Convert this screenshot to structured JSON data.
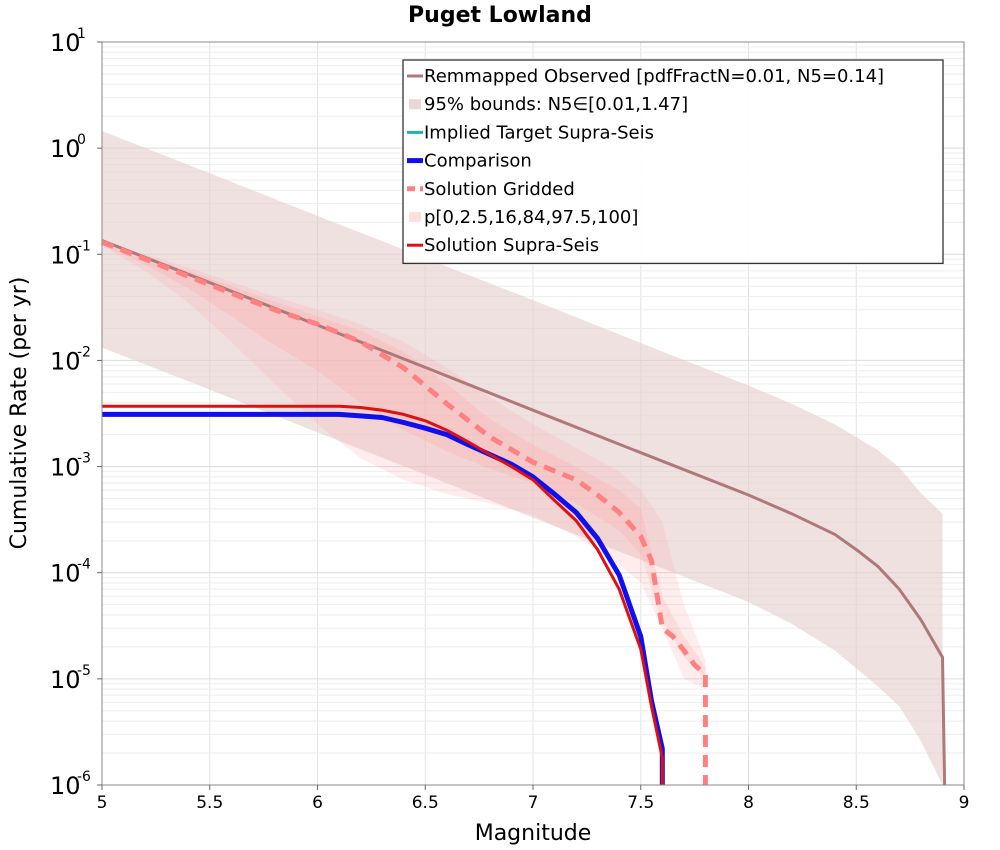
{
  "chart_data": {
    "type": "line",
    "title": "Puget Lowland",
    "xlabel": "Magnitude",
    "ylabel": "Cumulative Rate (per yr)",
    "xlim": [
      5,
      9
    ],
    "ylim": [
      1e-06,
      10
    ],
    "yscale": "log",
    "grid": true,
    "legend_position": "top-right",
    "xticks": [
      "5",
      "5.5",
      "6",
      "6.5",
      "7",
      "7.5",
      "8",
      "8.5",
      "9"
    ],
    "yticks": [
      {
        "base": "10",
        "exp": "-6",
        "value": 1e-06
      },
      {
        "base": "10",
        "exp": "-5",
        "value": 1e-05
      },
      {
        "base": "10",
        "exp": "-4",
        "value": 0.0001
      },
      {
        "base": "10",
        "exp": "-3",
        "value": 0.001
      },
      {
        "base": "10",
        "exp": "-2",
        "value": 0.01
      },
      {
        "base": "10",
        "exp": "-1",
        "value": 0.1
      },
      {
        "base": "10",
        "exp": "0",
        "value": 1
      },
      {
        "base": "10",
        "exp": "1",
        "value": 10
      }
    ],
    "series": [
      {
        "name": "Remmapped Observed [pdfFractN=0.01, N5=0.14]",
        "style": "line",
        "color": "#b07878",
        "width": 3,
        "points": [
          [
            5.0,
            0.135
          ],
          [
            5.5,
            0.054
          ],
          [
            6.0,
            0.0215
          ],
          [
            6.5,
            0.0086
          ],
          [
            7.0,
            0.0034
          ],
          [
            7.5,
            0.00135
          ],
          [
            8.0,
            0.00054
          ],
          [
            8.2,
            0.00036
          ],
          [
            8.4,
            0.00023
          ],
          [
            8.5,
            0.000165
          ],
          [
            8.6,
            0.000115
          ],
          [
            8.7,
            7e-05
          ],
          [
            8.8,
            3.6e-05
          ],
          [
            8.9,
            1.6e-05
          ],
          [
            8.91,
            1e-06
          ]
        ]
      },
      {
        "name": "95% bounds: N5∈[0.01,1.47]",
        "style": "band",
        "color": "#e6cdcd",
        "opacity": 0.6,
        "upper": [
          [
            5.0,
            1.45
          ],
          [
            5.5,
            0.58
          ],
          [
            6.0,
            0.23
          ],
          [
            6.5,
            0.092
          ],
          [
            7.0,
            0.037
          ],
          [
            7.5,
            0.0146
          ],
          [
            8.0,
            0.0058
          ],
          [
            8.2,
            0.0039
          ],
          [
            8.4,
            0.0025
          ],
          [
            8.6,
            0.00143
          ],
          [
            8.7,
            0.00098
          ],
          [
            8.8,
            0.00056
          ],
          [
            8.9,
            0.00036
          ],
          [
            8.9,
            0.00036
          ]
        ],
        "lower": [
          [
            5.0,
            0.0132
          ],
          [
            5.5,
            0.0053
          ],
          [
            6.0,
            0.0021
          ],
          [
            6.5,
            0.00084
          ],
          [
            7.0,
            0.00033
          ],
          [
            7.5,
            0.000132
          ],
          [
            8.0,
            5.3e-05
          ],
          [
            8.2,
            3.3e-05
          ],
          [
            8.4,
            1.85e-05
          ],
          [
            8.6,
            8.5e-06
          ],
          [
            8.7,
            5.5e-06
          ],
          [
            8.8,
            2.6e-06
          ],
          [
            8.9,
            1e-06
          ]
        ]
      },
      {
        "name": "Implied Target Supra-Seis",
        "style": "line",
        "color": "#20b2aa",
        "width": 3,
        "points": [
          [
            5.0,
            0.0031
          ],
          [
            6.0,
            0.0031
          ],
          [
            6.1,
            0.0031
          ],
          [
            6.2,
            0.003
          ],
          [
            6.3,
            0.0029
          ],
          [
            6.4,
            0.0026
          ],
          [
            6.5,
            0.0023
          ],
          [
            6.6,
            0.002
          ],
          [
            6.7,
            0.0016
          ],
          [
            6.8,
            0.0013
          ],
          [
            6.9,
            0.00105
          ],
          [
            7.0,
            0.0008
          ],
          [
            7.1,
            0.00055
          ],
          [
            7.2,
            0.00037
          ],
          [
            7.3,
            0.00021
          ],
          [
            7.4,
            9.5e-05
          ],
          [
            7.5,
            2.5e-05
          ],
          [
            7.55,
            6.2e-06
          ],
          [
            7.6,
            2.2e-06
          ],
          [
            7.6,
            1e-06
          ]
        ]
      },
      {
        "name": "Comparison",
        "style": "line",
        "color": "#1010ee",
        "width": 5,
        "points": [
          [
            5.0,
            0.0031
          ],
          [
            6.0,
            0.0031
          ],
          [
            6.1,
            0.0031
          ],
          [
            6.2,
            0.003
          ],
          [
            6.3,
            0.0029
          ],
          [
            6.4,
            0.0026
          ],
          [
            6.5,
            0.0023
          ],
          [
            6.6,
            0.002
          ],
          [
            6.7,
            0.0016
          ],
          [
            6.8,
            0.0013
          ],
          [
            6.9,
            0.00105
          ],
          [
            7.0,
            0.0008
          ],
          [
            7.1,
            0.00055
          ],
          [
            7.2,
            0.00037
          ],
          [
            7.3,
            0.00021
          ],
          [
            7.4,
            9.5e-05
          ],
          [
            7.5,
            2.5e-05
          ],
          [
            7.55,
            6.2e-06
          ],
          [
            7.6,
            2.2e-06
          ],
          [
            7.6,
            1e-06
          ]
        ]
      },
      {
        "name": "Solution Gridded",
        "style": "dashed",
        "color": "#ff8080",
        "width": 5,
        "points": [
          [
            5.0,
            0.13
          ],
          [
            5.2,
            0.09
          ],
          [
            5.4,
            0.062
          ],
          [
            5.6,
            0.043
          ],
          [
            5.8,
            0.03
          ],
          [
            6.0,
            0.022
          ],
          [
            6.2,
            0.015
          ],
          [
            6.4,
            0.0085
          ],
          [
            6.6,
            0.0039
          ],
          [
            6.8,
            0.0019
          ],
          [
            7.0,
            0.0011
          ],
          [
            7.2,
            0.00075
          ],
          [
            7.3,
            0.00054
          ],
          [
            7.4,
            0.00037
          ],
          [
            7.5,
            0.00022
          ],
          [
            7.55,
            0.00013
          ],
          [
            7.6,
            3e-05
          ],
          [
            7.65,
            2.5e-05
          ],
          [
            7.7,
            1.85e-05
          ],
          [
            7.75,
            1.35e-05
          ],
          [
            7.8,
            1.1e-05
          ],
          [
            7.8,
            1e-06
          ]
        ]
      },
      {
        "name": "p[0,2.5,16,84,97.5,100]",
        "style": "percentile-bands",
        "color": "#ff9999",
        "outer": {
          "upper": [
            [
              5.0,
              0.13
            ],
            [
              5.2,
              0.1
            ],
            [
              5.4,
              0.075
            ],
            [
              5.6,
              0.055
            ],
            [
              5.8,
              0.04
            ],
            [
              6.0,
              0.03
            ],
            [
              6.2,
              0.022
            ],
            [
              6.4,
              0.015
            ],
            [
              6.6,
              0.0085
            ],
            [
              6.8,
              0.0045
            ],
            [
              7.0,
              0.0025
            ],
            [
              7.2,
              0.0015
            ],
            [
              7.4,
              0.0009
            ],
            [
              7.5,
              0.0006
            ],
            [
              7.6,
              0.0003
            ],
            [
              7.7,
              5e-05
            ],
            [
              7.8,
              1.5e-05
            ]
          ],
          "lower": [
            [
              5.0,
              0.12
            ],
            [
              5.2,
              0.07
            ],
            [
              5.4,
              0.035
            ],
            [
              5.6,
              0.015
            ],
            [
              5.8,
              0.006
            ],
            [
              6.0,
              0.0025
            ],
            [
              6.2,
              0.0012
            ],
            [
              6.4,
              0.00075
            ],
            [
              6.6,
              0.00055
            ],
            [
              6.8,
              0.00045
            ],
            [
              7.0,
              0.00035
            ],
            [
              7.2,
              0.00022
            ],
            [
              7.4,
              0.00012
            ],
            [
              7.5,
              8e-05
            ],
            [
              7.6,
              3e-05
            ],
            [
              7.7,
              1e-05
            ],
            [
              7.8,
              8e-06
            ]
          ]
        },
        "inner": {
          "upper": [
            [
              5.0,
              0.128
            ],
            [
              5.2,
              0.095
            ],
            [
              5.4,
              0.07
            ],
            [
              5.6,
              0.05
            ],
            [
              5.8,
              0.036
            ],
            [
              6.0,
              0.026
            ],
            [
              6.2,
              0.019
            ],
            [
              6.4,
              0.012
            ],
            [
              6.6,
              0.006
            ],
            [
              6.8,
              0.0028
            ],
            [
              7.0,
              0.0016
            ],
            [
              7.2,
              0.001
            ],
            [
              7.4,
              0.0006
            ],
            [
              7.5,
              0.0004
            ],
            [
              7.6,
              6e-05
            ],
            [
              7.7,
              2.5e-05
            ],
            [
              7.8,
              1.3e-05
            ]
          ],
          "lower": [
            [
              5.0,
              0.125
            ],
            [
              5.2,
              0.08
            ],
            [
              5.4,
              0.048
            ],
            [
              5.6,
              0.026
            ],
            [
              5.8,
              0.014
            ],
            [
              6.0,
              0.008
            ],
            [
              6.2,
              0.004
            ],
            [
              6.4,
              0.0022
            ],
            [
              6.6,
              0.0014
            ],
            [
              6.8,
              0.00095
            ],
            [
              7.0,
              0.0007
            ],
            [
              7.2,
              0.00045
            ],
            [
              7.4,
              0.00025
            ],
            [
              7.5,
              0.00015
            ],
            [
              7.6,
              3.5e-05
            ],
            [
              7.7,
              1.6e-05
            ],
            [
              7.8,
              1e-05
            ]
          ]
        }
      },
      {
        "name": "Solution Supra-Seis",
        "style": "line",
        "color": "#dd1111",
        "width": 3,
        "points": [
          [
            5.0,
            0.0037
          ],
          [
            6.0,
            0.0037
          ],
          [
            6.1,
            0.0037
          ],
          [
            6.2,
            0.0036
          ],
          [
            6.3,
            0.0034
          ],
          [
            6.4,
            0.0031
          ],
          [
            6.5,
            0.0027
          ],
          [
            6.6,
            0.0022
          ],
          [
            6.7,
            0.0017
          ],
          [
            6.8,
            0.0013
          ],
          [
            6.9,
            0.001
          ],
          [
            7.0,
            0.00075
          ],
          [
            7.1,
            0.00048
          ],
          [
            7.2,
            0.00031
          ],
          [
            7.3,
            0.000165
          ],
          [
            7.4,
            7e-05
          ],
          [
            7.5,
            1.9e-05
          ],
          [
            7.55,
            5.5e-06
          ],
          [
            7.6,
            1.8e-06
          ],
          [
            7.6,
            1e-06
          ]
        ]
      }
    ]
  }
}
